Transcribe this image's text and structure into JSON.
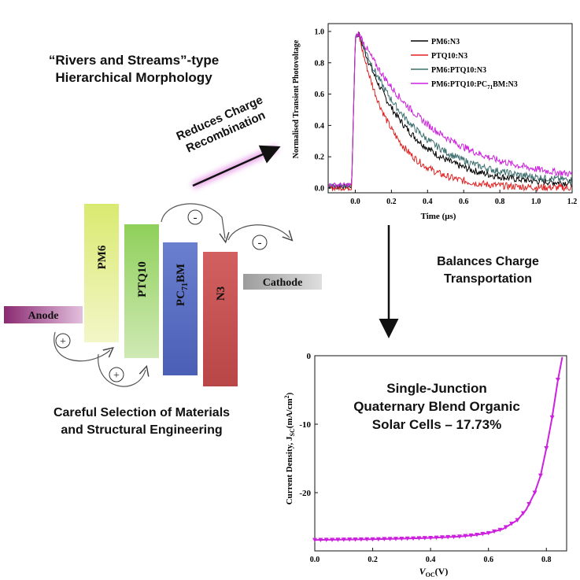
{
  "title": {
    "line1": "“Rivers and Streams”-type",
    "line2": "Hierarchical Morphology"
  },
  "reduces_arrow": {
    "line1": "Reduces Charge",
    "line2": "Recombination"
  },
  "balances_arrow": {
    "line1": "Balances Charge",
    "line2": "Transportation"
  },
  "careful": {
    "line1": "Careful Selection of Materials",
    "line2": "and Structural Engineering"
  },
  "highlight": {
    "line1": "Single-Junction",
    "line2": "Quaternary Blend Organic",
    "line3": "Solar Cells – 17.73%"
  },
  "bands": {
    "anode": "Anode",
    "pm6": "PM6",
    "ptq10": "PTQ10",
    "pc71bm_main": "PC",
    "pc71bm_sub": "71",
    "pc71bm_tail": "BM",
    "n3": "N3",
    "cathode": "Cathode"
  },
  "charges": {
    "minus": "-",
    "plus": "+"
  },
  "chart_data": [
    {
      "type": "line",
      "ylabel": "Normalised Transient Photovoltage",
      "xlabel": "Time (μs)",
      "xlim": [
        -0.15,
        1.2
      ],
      "ylim": [
        -0.03,
        1.05
      ],
      "xticks": [
        "0.0",
        "0.2",
        "0.4",
        "0.6",
        "0.8",
        "1.0",
        "1.2"
      ],
      "yticks": [
        "0.0",
        "0.2",
        "0.4",
        "0.6",
        "0.8",
        "1.0"
      ],
      "legend": "top-right",
      "series": [
        {
          "name": "PM6:N3",
          "color": "#000000",
          "tau": 0.27,
          "baseline": 0.02
        },
        {
          "name": "PTQ10:N3",
          "color": "#e02020",
          "tau": 0.19,
          "baseline": 0.0
        },
        {
          "name": "PM6:PTQ10:N3",
          "color": "#3d6e6e",
          "tau": 0.31,
          "baseline": 0.03
        },
        {
          "name_main": "PM6:PTQ10:PC",
          "name_sub": "71",
          "name_tail": "BM:N3",
          "color": "#cc22dd",
          "tau": 0.4,
          "baseline": 0.04
        }
      ]
    },
    {
      "type": "line",
      "ylabel_main": "Current Density, J",
      "ylabel_sub": "SC",
      "ylabel_unit": "(mA/cm",
      "ylabel_sup": "2",
      "ylabel_close": ")",
      "xlabel_main": "V",
      "xlabel_sub": "OC",
      "xlabel_unit": "(V)",
      "xlim": [
        0.0,
        0.87
      ],
      "ylim": [
        -28.5,
        0
      ],
      "xticks": [
        "0.0",
        "0.2",
        "0.4",
        "0.6",
        "0.8"
      ],
      "yticks": [
        "0",
        "-10",
        "-20"
      ],
      "series": [
        {
          "color": "#cc22dd",
          "v": [
            0.0,
            0.1,
            0.2,
            0.3,
            0.4,
            0.5,
            0.55,
            0.6,
            0.65,
            0.7,
            0.73,
            0.76,
            0.78,
            0.8,
            0.82,
            0.84,
            0.855
          ],
          "j": [
            -26.9,
            -26.85,
            -26.8,
            -26.72,
            -26.6,
            -26.4,
            -26.2,
            -25.9,
            -25.3,
            -24.0,
            -22.5,
            -20.0,
            -17.5,
            -13.5,
            -9.0,
            -3.5,
            -0.2
          ]
        }
      ]
    }
  ]
}
